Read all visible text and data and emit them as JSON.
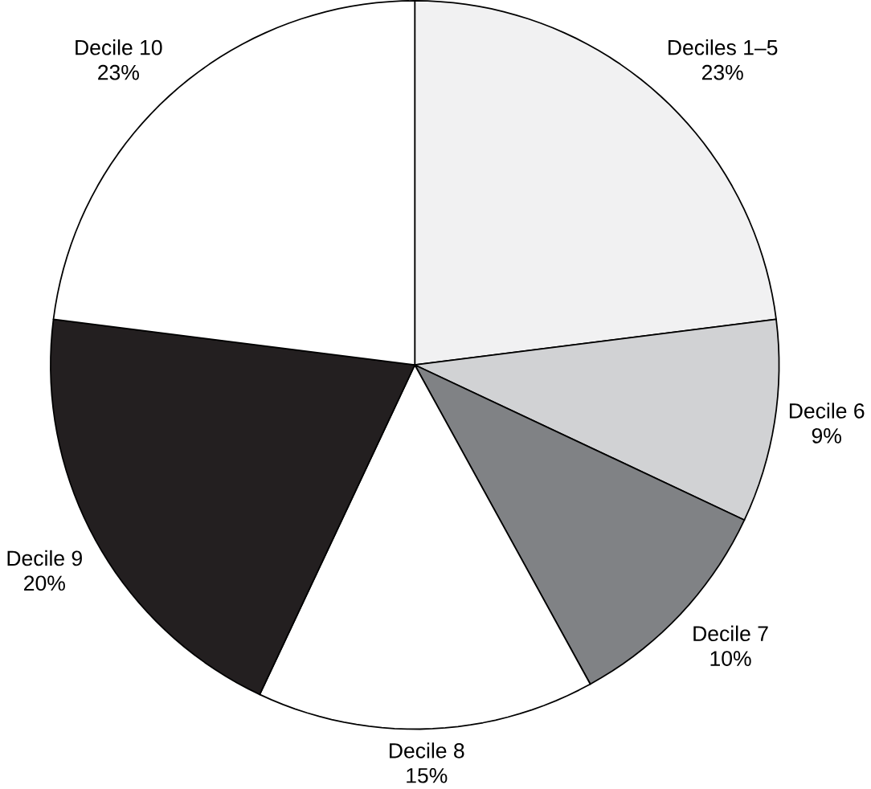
{
  "chart_data": {
    "type": "pie",
    "categories": [
      "Deciles 1–5",
      "Decile 6",
      "Decile 7",
      "Decile 8",
      "Decile 9",
      "Decile 10"
    ],
    "values": [
      23,
      9,
      10,
      15,
      20,
      23
    ],
    "value_labels": [
      "23%",
      "9%",
      "10%",
      "15%",
      "20%",
      "23%"
    ],
    "colors": [
      "#f1f1f2",
      "#d1d2d4",
      "#808285",
      "#ffffff",
      "#231f20",
      "#ffffff"
    ]
  }
}
